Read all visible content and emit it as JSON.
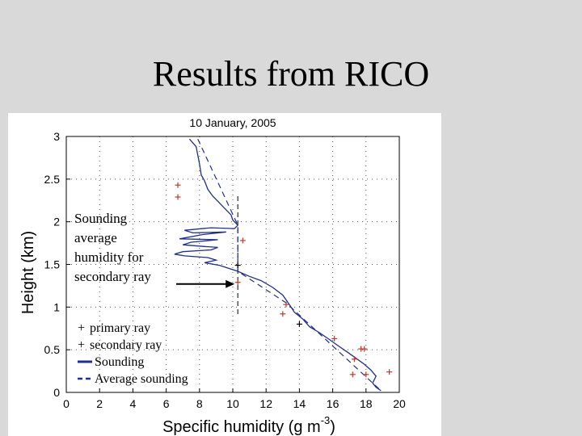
{
  "slide": {
    "title": "Results from RICO"
  },
  "chart_data": {
    "type": "line",
    "title": "10 January, 2005",
    "xlabel": "Specific humidity (g m",
    "xlabel_sup": "-3",
    "xlabel_close": ")",
    "ylabel": "Height (km)",
    "xlim": [
      0,
      20
    ],
    "ylim": [
      0,
      3
    ],
    "xticks": [
      0,
      2,
      4,
      6,
      8,
      10,
      12,
      14,
      16,
      18,
      20
    ],
    "yticks": [
      0,
      0.5,
      1,
      1.5,
      2,
      2.5,
      3
    ],
    "grid": true,
    "legend_position": "bottom-left",
    "annotation": {
      "lines": [
        "Sounding",
        "average",
        "humidity for",
        "secondary ray"
      ],
      "arrow_to": {
        "x": 10.3,
        "y": 1.27
      },
      "vline_x": 10.3
    },
    "series": [
      {
        "name": "primary ray",
        "kind": "marker",
        "color": "#c0392b",
        "points": [
          [
            6.7,
            2.43
          ],
          [
            6.7,
            2.29
          ],
          [
            10.6,
            1.78
          ],
          [
            10.3,
            1.29
          ],
          [
            13.2,
            1.03
          ],
          [
            13.0,
            0.92
          ],
          [
            16.1,
            0.63
          ],
          [
            17.7,
            0.51
          ],
          [
            17.9,
            0.51
          ],
          [
            17.3,
            0.39
          ],
          [
            18.0,
            0.21
          ],
          [
            17.2,
            0.21
          ],
          [
            19.4,
            0.24
          ]
        ]
      },
      {
        "name": "secondary ray",
        "kind": "marker",
        "color": "#000000",
        "points": [
          [
            10.3,
            1.49
          ],
          [
            14.0,
            0.8
          ]
        ]
      },
      {
        "name": "Sounding",
        "kind": "line",
        "color": "#1f2f8a",
        "points": [
          [
            7.4,
            2.97
          ],
          [
            7.8,
            2.88
          ],
          [
            7.9,
            2.78
          ],
          [
            8.0,
            2.68
          ],
          [
            8.1,
            2.55
          ],
          [
            8.3,
            2.48
          ],
          [
            8.5,
            2.38
          ],
          [
            8.8,
            2.3
          ],
          [
            9.1,
            2.24
          ],
          [
            9.5,
            2.16
          ],
          [
            9.9,
            2.08
          ],
          [
            10.0,
            2.02
          ],
          [
            10.3,
            1.96
          ],
          [
            10.1,
            1.92
          ],
          [
            8.7,
            1.93
          ],
          [
            7.1,
            1.9
          ],
          [
            7.6,
            1.87
          ],
          [
            9.6,
            1.88
          ],
          [
            8.2,
            1.85
          ],
          [
            6.8,
            1.8
          ],
          [
            9.1,
            1.79
          ],
          [
            7.5,
            1.76
          ],
          [
            7.0,
            1.73
          ],
          [
            8.3,
            1.71
          ],
          [
            9.1,
            1.7
          ],
          [
            8.7,
            1.67
          ],
          [
            7.0,
            1.65
          ],
          [
            6.5,
            1.62
          ],
          [
            7.1,
            1.6
          ],
          [
            8.5,
            1.58
          ],
          [
            9.0,
            1.55
          ],
          [
            8.3,
            1.52
          ],
          [
            9.2,
            1.49
          ],
          [
            10.3,
            1.42
          ],
          [
            11.0,
            1.36
          ],
          [
            11.7,
            1.31
          ],
          [
            12.4,
            1.23
          ],
          [
            13.0,
            1.14
          ],
          [
            13.4,
            1.03
          ],
          [
            13.7,
            0.94
          ],
          [
            14.2,
            0.86
          ],
          [
            14.6,
            0.77
          ],
          [
            15.2,
            0.7
          ],
          [
            15.8,
            0.62
          ],
          [
            16.3,
            0.55
          ],
          [
            16.9,
            0.47
          ],
          [
            17.4,
            0.4
          ],
          [
            17.9,
            0.33
          ],
          [
            18.3,
            0.26
          ],
          [
            18.6,
            0.19
          ],
          [
            18.4,
            0.11
          ],
          [
            18.6,
            0.06
          ],
          [
            18.9,
            0.02
          ]
        ]
      },
      {
        "name": "Average sounding",
        "kind": "dashed",
        "color": "#1f2f8a",
        "points": [
          [
            7.9,
            2.97
          ],
          [
            10.3,
            1.96
          ],
          [
            10.3,
            1.42
          ],
          [
            13.2,
            1.05
          ],
          [
            18.9,
            0.02
          ]
        ]
      }
    ]
  }
}
